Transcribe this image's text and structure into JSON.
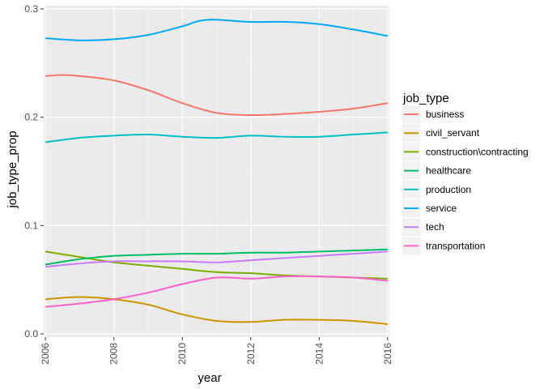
{
  "chart_data": {
    "type": "line",
    "title": "",
    "xlabel": "year",
    "ylabel": "job_type_prop",
    "xlim": [
      2005.95,
      2016.05
    ],
    "ylim": [
      -0.003,
      0.303
    ],
    "x_ticks": [
      2006,
      2008,
      2010,
      2012,
      2014,
      2016
    ],
    "x_tick_labels": [
      "2006",
      "2008",
      "2010",
      "2012",
      "2014",
      "2016"
    ],
    "y_ticks": [
      0.0,
      0.1,
      0.2,
      0.3
    ],
    "y_tick_labels": [
      "0.0",
      "0.1",
      "0.2",
      "0.3"
    ],
    "grid": true,
    "legend_title": "job_type",
    "legend_position": "right",
    "series": [
      {
        "name": "business",
        "color": "#F8766D",
        "x": [
          2006,
          2006.5,
          2007,
          2008,
          2009,
          2010,
          2011,
          2012,
          2013,
          2014,
          2015,
          2016
        ],
        "y": [
          0.238,
          0.239,
          0.238,
          0.234,
          0.225,
          0.213,
          0.204,
          0.202,
          0.203,
          0.205,
          0.208,
          0.213
        ]
      },
      {
        "name": "civil_servant",
        "color": "#CD9600",
        "x": [
          2006,
          2007,
          2008,
          2009,
          2010,
          2011,
          2012,
          2013,
          2014,
          2015,
          2016
        ],
        "y": [
          0.032,
          0.034,
          0.032,
          0.027,
          0.018,
          0.012,
          0.011,
          0.013,
          0.013,
          0.012,
          0.009
        ]
      },
      {
        "name": "construction\\contracting",
        "color": "#7CAE00",
        "x": [
          2006,
          2007,
          2008,
          2009,
          2010,
          2011,
          2012,
          2013,
          2014,
          2015,
          2016
        ],
        "y": [
          0.076,
          0.071,
          0.066,
          0.063,
          0.06,
          0.057,
          0.056,
          0.054,
          0.053,
          0.052,
          0.051
        ]
      },
      {
        "name": "healthcare",
        "color": "#00BE67",
        "x": [
          2006,
          2007,
          2008,
          2009,
          2010,
          2011,
          2012,
          2013,
          2014,
          2015,
          2016
        ],
        "y": [
          0.064,
          0.069,
          0.072,
          0.073,
          0.074,
          0.074,
          0.075,
          0.075,
          0.076,
          0.077,
          0.078
        ]
      },
      {
        "name": "production",
        "color": "#00BFC4",
        "x": [
          2006,
          2007,
          2008,
          2009,
          2010,
          2011,
          2012,
          2013,
          2014,
          2015,
          2016
        ],
        "y": [
          0.177,
          0.181,
          0.183,
          0.184,
          0.182,
          0.181,
          0.183,
          0.182,
          0.182,
          0.184,
          0.186
        ]
      },
      {
        "name": "service",
        "color": "#00A9FF",
        "x": [
          2006,
          2007,
          2008,
          2009,
          2010,
          2010.5,
          2011,
          2012,
          2013,
          2014,
          2015,
          2016
        ],
        "y": [
          0.273,
          0.271,
          0.272,
          0.276,
          0.284,
          0.289,
          0.29,
          0.288,
          0.288,
          0.286,
          0.281,
          0.275
        ]
      },
      {
        "name": "tech",
        "color": "#C77CFF",
        "x": [
          2006,
          2007,
          2008,
          2009,
          2010,
          2011,
          2012,
          2013,
          2014,
          2015,
          2016
        ],
        "y": [
          0.062,
          0.065,
          0.067,
          0.067,
          0.067,
          0.066,
          0.068,
          0.07,
          0.072,
          0.074,
          0.076
        ]
      },
      {
        "name": "transportation",
        "color": "#FF61CC",
        "x": [
          2006,
          2007,
          2008,
          2009,
          2010,
          2011,
          2012,
          2013,
          2014,
          2015,
          2016
        ],
        "y": [
          0.025,
          0.028,
          0.032,
          0.038,
          0.046,
          0.052,
          0.051,
          0.053,
          0.053,
          0.052,
          0.049
        ]
      }
    ]
  }
}
